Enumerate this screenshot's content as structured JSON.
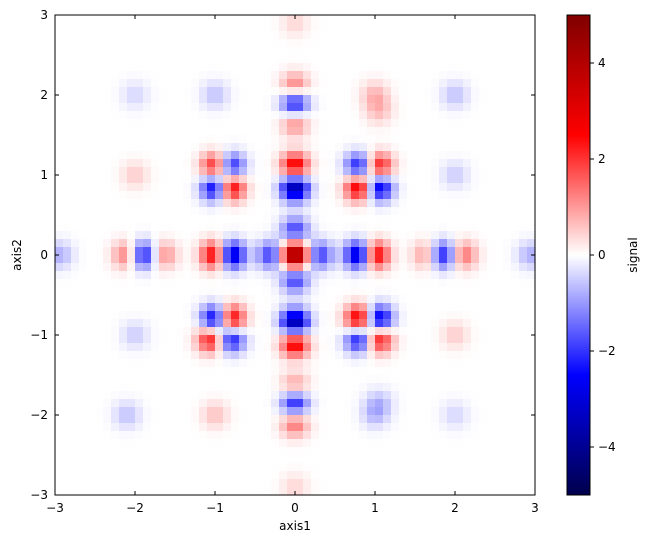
{
  "chart_data": {
    "type": "heatmap",
    "title": "",
    "xlabel": "axis1",
    "ylabel": "axis2",
    "xlim": [
      -3,
      3
    ],
    "ylim": [
      -3,
      3
    ],
    "xticks": [
      -3,
      -2,
      -1,
      0,
      1,
      2,
      3
    ],
    "yticks": [
      -3,
      -2,
      -1,
      0,
      1,
      2,
      3
    ],
    "colormap": "seismic",
    "colorbar": {
      "label": "signal",
      "range": [
        -5,
        5
      ],
      "ticks": [
        -4,
        -2,
        0,
        2,
        4
      ],
      "tick_labels": [
        "−4",
        "−2",
        "0",
        "2",
        "4"
      ]
    },
    "grid_resolution": 60,
    "peaks": [
      {
        "x": 0,
        "y": 0,
        "value": 5.0
      },
      {
        "x": 0,
        "y": 0.3,
        "value": -2.0
      },
      {
        "x": 0,
        "y": -0.3,
        "value": -2.0
      },
      {
        "x": 0.3,
        "y": 0,
        "value": -2.0
      },
      {
        "x": -0.3,
        "y": 0,
        "value": -2.0
      },
      {
        "x": -1.0,
        "y": 0,
        "value": 3.0
      },
      {
        "x": -0.8,
        "y": 0,
        "value": -3.5
      },
      {
        "x": 1.0,
        "y": 0,
        "value": 3.0
      },
      {
        "x": 0.8,
        "y": 0,
        "value": -3.5
      },
      {
        "x": 0,
        "y": 1.1,
        "value": 3.0
      },
      {
        "x": 0,
        "y": 0.85,
        "value": -4.0
      },
      {
        "x": 0,
        "y": -1.1,
        "value": 3.0
      },
      {
        "x": 0,
        "y": -0.85,
        "value": -4.0
      },
      {
        "x": -1.0,
        "y": 1.1,
        "value": 2.5
      },
      {
        "x": -0.8,
        "y": 1.1,
        "value": -2.5
      },
      {
        "x": -1.0,
        "y": 0.85,
        "value": -3.0
      },
      {
        "x": -0.8,
        "y": 0.85,
        "value": 3.0
      },
      {
        "x": 0.8,
        "y": 1.1,
        "value": -2.5
      },
      {
        "x": 1.05,
        "y": 1.1,
        "value": 2.5
      },
      {
        "x": 0.8,
        "y": 0.85,
        "value": 3.0
      },
      {
        "x": 1.05,
        "y": 0.85,
        "value": -3.0
      },
      {
        "x": -1.0,
        "y": -0.8,
        "value": -3.0
      },
      {
        "x": -0.8,
        "y": -0.8,
        "value": 3.0
      },
      {
        "x": -1.05,
        "y": -1.05,
        "value": 2.5
      },
      {
        "x": -0.8,
        "y": -1.05,
        "value": -2.5
      },
      {
        "x": 0.8,
        "y": -0.8,
        "value": 3.0
      },
      {
        "x": 1.05,
        "y": -0.8,
        "value": -3.0
      },
      {
        "x": 0.8,
        "y": -1.05,
        "value": -2.5
      },
      {
        "x": 1.05,
        "y": -1.05,
        "value": 2.5
      },
      {
        "x": 0,
        "y": 2.1,
        "value": 1.5
      },
      {
        "x": 0,
        "y": 1.9,
        "value": -2.5
      },
      {
        "x": 0,
        "y": 1.65,
        "value": 1.2
      },
      {
        "x": 0,
        "y": -1.65,
        "value": 1.2
      },
      {
        "x": 0,
        "y": -1.85,
        "value": -2.5
      },
      {
        "x": 0,
        "y": -2.1,
        "value": 1.5
      },
      {
        "x": -2.1,
        "y": 0,
        "value": 1.5
      },
      {
        "x": -1.9,
        "y": 0,
        "value": -2.5
      },
      {
        "x": -1.65,
        "y": 0,
        "value": 1.2
      },
      {
        "x": 1.65,
        "y": 0,
        "value": 1.2
      },
      {
        "x": 1.85,
        "y": 0,
        "value": -2.5
      },
      {
        "x": 2.1,
        "y": 0,
        "value": 1.5
      },
      {
        "x": -2.95,
        "y": 0,
        "value": -0.8
      },
      {
        "x": 2.95,
        "y": 0,
        "value": -0.8
      },
      {
        "x": 0,
        "y": 2.9,
        "value": 0.4
      },
      {
        "x": 0,
        "y": -2.9,
        "value": 0.4
      },
      {
        "x": -1.0,
        "y": 2.0,
        "value": -0.6
      },
      {
        "x": 1.0,
        "y": 2.0,
        "value": 0.7
      },
      {
        "x": -1.0,
        "y": -2.0,
        "value": 0.6
      },
      {
        "x": 1.0,
        "y": -2.0,
        "value": -0.6
      },
      {
        "x": -2.0,
        "y": 1.0,
        "value": 0.5
      },
      {
        "x": 2.0,
        "y": 1.0,
        "value": -0.5
      },
      {
        "x": -2.0,
        "y": -1.0,
        "value": -0.5
      },
      {
        "x": 2.0,
        "y": -1.0,
        "value": 0.5
      },
      {
        "x": -2.1,
        "y": -2.0,
        "value": -0.6
      },
      {
        "x": 2.0,
        "y": 2.0,
        "value": -0.6
      },
      {
        "x": -2.0,
        "y": 2.0,
        "value": -0.4
      },
      {
        "x": 2.0,
        "y": -2.0,
        "value": -0.4
      },
      {
        "x": 1.05,
        "y": -1.85,
        "value": -0.6
      },
      {
        "x": 1.05,
        "y": 1.8,
        "value": 0.6
      }
    ]
  }
}
